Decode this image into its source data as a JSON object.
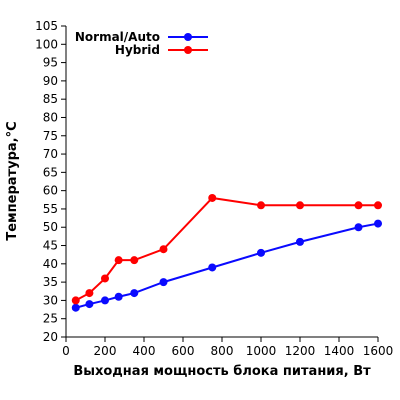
{
  "chart_data": {
    "type": "line",
    "x": [
      50,
      120,
      200,
      270,
      350,
      500,
      750,
      1000,
      1200,
      1500,
      1600
    ],
    "series": [
      {
        "name": "Normal/Auto",
        "color": "#0a0aff",
        "values": [
          28,
          29,
          30,
          31,
          32,
          35,
          39,
          43,
          46,
          50,
          51
        ]
      },
      {
        "name": "Hybrid",
        "color": "#ff0000",
        "values": [
          30,
          32,
          36,
          41,
          41,
          44,
          58,
          56,
          56,
          56,
          56
        ]
      }
    ],
    "xlabel": "Выходная мощность блока питания, Вт",
    "ylabel": "Температура,°C",
    "xlim": [
      0,
      1600
    ],
    "ylim": [
      20,
      105
    ],
    "xticks": [
      0,
      200,
      400,
      600,
      800,
      1000,
      1200,
      1400,
      1600
    ],
    "yticks": [
      20,
      25,
      30,
      35,
      40,
      45,
      50,
      55,
      60,
      65,
      70,
      75,
      80,
      85,
      90,
      95,
      100,
      105
    ],
    "grid": false,
    "legend": "top-left"
  }
}
